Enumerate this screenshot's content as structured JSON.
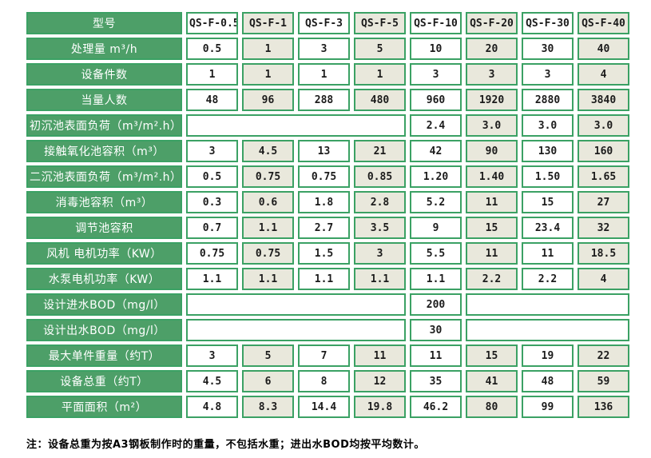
{
  "colors": {
    "cell_border_green": "#3ba164",
    "label_cell_green": "#4d9f68",
    "alt_column_beige": "#e9e8dc"
  },
  "table": {
    "header": {
      "label": "型号",
      "models": [
        "QS-F-0.5",
        "QS-F-1",
        "QS-F-3",
        "QS-F-5",
        "QS-F-10",
        "QS-F-20",
        "QS-F-30",
        "QS-F-40"
      ]
    },
    "rows": [
      {
        "label": "处理量 m³/h",
        "cells": [
          {
            "v": "0.5"
          },
          {
            "v": "1"
          },
          {
            "v": "3"
          },
          {
            "v": "5"
          },
          {
            "v": "10"
          },
          {
            "v": "20"
          },
          {
            "v": "30"
          },
          {
            "v": "40"
          }
        ]
      },
      {
        "label": "设备件数",
        "cells": [
          {
            "v": "1"
          },
          {
            "v": "1"
          },
          {
            "v": "1"
          },
          {
            "v": "1"
          },
          {
            "v": "3"
          },
          {
            "v": "3"
          },
          {
            "v": "3"
          },
          {
            "v": "4"
          }
        ]
      },
      {
        "label": "当量人数",
        "cells": [
          {
            "v": "48"
          },
          {
            "v": "96"
          },
          {
            "v": "288"
          },
          {
            "v": "480"
          },
          {
            "v": "960"
          },
          {
            "v": "1920"
          },
          {
            "v": "2880"
          },
          {
            "v": "3840"
          }
        ]
      },
      {
        "label": "初沉池表面负荷（m³/m².h）",
        "cells": [
          {
            "v": "",
            "span": 4
          },
          {
            "v": "2.4"
          },
          {
            "v": "3.0"
          },
          {
            "v": "3.0"
          },
          {
            "v": "3.0"
          }
        ]
      },
      {
        "label": "接触氧化池容积（m³）",
        "cells": [
          {
            "v": "3"
          },
          {
            "v": "4.5"
          },
          {
            "v": "13"
          },
          {
            "v": "21"
          },
          {
            "v": "42"
          },
          {
            "v": "90"
          },
          {
            "v": "130"
          },
          {
            "v": "160"
          }
        ]
      },
      {
        "label": "二沉池表面负荷（m³/m².h）",
        "cells": [
          {
            "v": "0.5"
          },
          {
            "v": "0.75"
          },
          {
            "v": "0.75"
          },
          {
            "v": "0.85"
          },
          {
            "v": "1.20"
          },
          {
            "v": "1.40"
          },
          {
            "v": "1.50"
          },
          {
            "v": "1.65"
          }
        ]
      },
      {
        "label": "消毒池容积（m³）",
        "cells": [
          {
            "v": "0.3"
          },
          {
            "v": "0.6"
          },
          {
            "v": "1.8"
          },
          {
            "v": "2.8"
          },
          {
            "v": "5.2"
          },
          {
            "v": "11"
          },
          {
            "v": "15"
          },
          {
            "v": "27"
          }
        ]
      },
      {
        "label": "调节池容积",
        "cells": [
          {
            "v": "0.7"
          },
          {
            "v": "1.1"
          },
          {
            "v": "2.7"
          },
          {
            "v": "3.5"
          },
          {
            "v": "9"
          },
          {
            "v": "15"
          },
          {
            "v": "23.4"
          },
          {
            "v": "32"
          }
        ]
      },
      {
        "label": "风机 电机功率（KW）",
        "cells": [
          {
            "v": "0.75"
          },
          {
            "v": "0.75"
          },
          {
            "v": "1.5"
          },
          {
            "v": "3"
          },
          {
            "v": "5.5"
          },
          {
            "v": "11"
          },
          {
            "v": "11"
          },
          {
            "v": "18.5"
          }
        ]
      },
      {
        "label": "水泵电机功率（KW）",
        "cells": [
          {
            "v": "1.1"
          },
          {
            "v": "1.1"
          },
          {
            "v": "1.1"
          },
          {
            "v": "1.1"
          },
          {
            "v": "1.1"
          },
          {
            "v": "2.2"
          },
          {
            "v": "2.2"
          },
          {
            "v": "4"
          }
        ]
      },
      {
        "label": "设计进水BOD（mg/l）",
        "cells": [
          {
            "v": "",
            "span": 4
          },
          {
            "v": "200"
          },
          {
            "v": "",
            "span": 3
          }
        ]
      },
      {
        "label": "设计出水BOD（mg/l）",
        "cells": [
          {
            "v": "",
            "span": 4
          },
          {
            "v": "30"
          },
          {
            "v": "",
            "span": 3
          }
        ]
      },
      {
        "label": "最大单件重量（约T）",
        "cells": [
          {
            "v": "3"
          },
          {
            "v": "5"
          },
          {
            "v": "7"
          },
          {
            "v": "11"
          },
          {
            "v": "11"
          },
          {
            "v": "15"
          },
          {
            "v": "19"
          },
          {
            "v": "22"
          }
        ]
      },
      {
        "label": "设备总重（约T）",
        "cells": [
          {
            "v": "4.5"
          },
          {
            "v": "6"
          },
          {
            "v": "8"
          },
          {
            "v": "12"
          },
          {
            "v": "35"
          },
          {
            "v": "41"
          },
          {
            "v": "48"
          },
          {
            "v": "59"
          }
        ]
      },
      {
        "label": "平面面积（m²）",
        "cells": [
          {
            "v": "4.8"
          },
          {
            "v": "8.3"
          },
          {
            "v": "14.4"
          },
          {
            "v": "19.8"
          },
          {
            "v": "46.2"
          },
          {
            "v": "80"
          },
          {
            "v": "99"
          },
          {
            "v": "136"
          }
        ]
      }
    ]
  },
  "note": "注：设备总重为按A3钢板制作时的重量，不包括水重；进出水BOD均按平均数计。"
}
